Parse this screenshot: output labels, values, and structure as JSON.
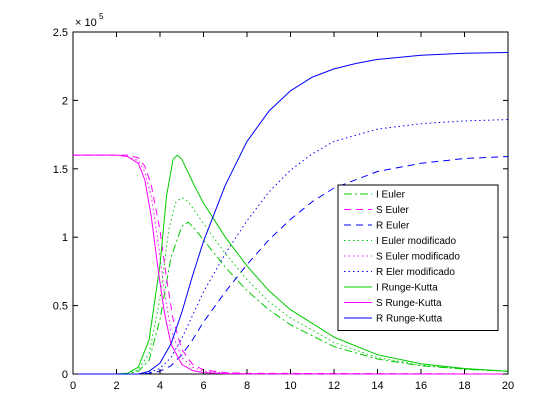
{
  "chart_data": {
    "type": "line",
    "title": "",
    "xlabel": "",
    "ylabel": "",
    "xlim": [
      0,
      20
    ],
    "ylim": [
      0,
      2.5
    ],
    "y_exponent_label": "× 10",
    "y_exponent_power": "5",
    "x_ticks": [
      0,
      2,
      4,
      6,
      8,
      10,
      12,
      14,
      16,
      18,
      20
    ],
    "y_ticks": [
      0,
      0.5,
      1,
      1.5,
      2,
      2.5
    ],
    "y_tick_labels": [
      "0",
      "0.5",
      "1",
      "1.5",
      "2",
      "2.5"
    ],
    "grid": false,
    "legend_position": "right",
    "series": [
      {
        "name": "I Euler",
        "color": "#00cc00",
        "dash": "dashdot",
        "x": [
          0,
          2,
          2.5,
          3,
          3.5,
          4,
          4.5,
          5,
          5.3,
          5.6,
          6,
          7,
          8,
          9,
          10,
          12,
          14,
          16,
          18,
          20
        ],
        "y": [
          0,
          0,
          0.003,
          0.02,
          0.1,
          0.4,
          0.85,
          1.08,
          1.11,
          1.06,
          0.98,
          0.78,
          0.61,
          0.47,
          0.36,
          0.2,
          0.11,
          0.06,
          0.035,
          0.02
        ]
      },
      {
        "name": "S Euler",
        "color": "#ff00ff",
        "dash": "dashed",
        "x": [
          0,
          2,
          2.5,
          3,
          3.3,
          3.6,
          4,
          4.3,
          4.6,
          5,
          5.5,
          6,
          7,
          8,
          20
        ],
        "y": [
          1.6,
          1.6,
          1.6,
          1.58,
          1.52,
          1.38,
          1.05,
          0.7,
          0.4,
          0.18,
          0.07,
          0.03,
          0.01,
          0.005,
          0.0
        ]
      },
      {
        "name": "R Euler",
        "color": "#0000ff",
        "dash": "dashed",
        "x": [
          0,
          3,
          3.5,
          4,
          4.5,
          5,
          5.5,
          6,
          7,
          8,
          9,
          10,
          11,
          12,
          14,
          16,
          18,
          20
        ],
        "y": [
          0,
          0,
          0.005,
          0.02,
          0.06,
          0.14,
          0.25,
          0.38,
          0.6,
          0.8,
          0.98,
          1.13,
          1.26,
          1.36,
          1.48,
          1.54,
          1.575,
          1.59
        ]
      },
      {
        "name": "I Euler modificado",
        "color": "#00cc00",
        "dash": "dotted",
        "x": [
          0,
          2,
          2.5,
          3,
          3.5,
          4,
          4.4,
          4.7,
          5,
          5.3,
          5.6,
          6,
          7,
          8,
          9,
          10,
          12,
          14,
          16,
          18,
          20
        ],
        "y": [
          0,
          0,
          0.004,
          0.03,
          0.15,
          0.55,
          1.05,
          1.25,
          1.29,
          1.26,
          1.19,
          1.1,
          0.88,
          0.69,
          0.53,
          0.41,
          0.23,
          0.12,
          0.065,
          0.035,
          0.02
        ]
      },
      {
        "name": "S Euler modificado",
        "color": "#ff00ff",
        "dash": "dotted",
        "x": [
          0,
          2,
          2.5,
          3,
          3.3,
          3.6,
          3.9,
          4.2,
          4.5,
          5,
          5.5,
          6,
          7,
          8,
          20
        ],
        "y": [
          1.6,
          1.6,
          1.59,
          1.56,
          1.48,
          1.3,
          0.98,
          0.6,
          0.32,
          0.12,
          0.05,
          0.02,
          0.008,
          0.003,
          0.0
        ]
      },
      {
        "name": "R Eler modificado",
        "color": "#0000ff",
        "dash": "dotted",
        "x": [
          0,
          3,
          3.5,
          4,
          4.5,
          5,
          5.5,
          6,
          7,
          8,
          9,
          10,
          11,
          12,
          14,
          16,
          18,
          20
        ],
        "y": [
          0,
          0,
          0.01,
          0.04,
          0.12,
          0.26,
          0.43,
          0.6,
          0.88,
          1.12,
          1.33,
          1.49,
          1.61,
          1.7,
          1.79,
          1.83,
          1.85,
          1.86
        ]
      },
      {
        "name": "I Runge-Kutta",
        "color": "#00cc00",
        "dash": "solid",
        "x": [
          0,
          2,
          2.5,
          3,
          3.5,
          4,
          4.3,
          4.6,
          4.8,
          5,
          5.3,
          5.6,
          6,
          7,
          8,
          9,
          10,
          12,
          14,
          16,
          18,
          20
        ],
        "y": [
          0,
          0,
          0.005,
          0.05,
          0.25,
          0.8,
          1.3,
          1.57,
          1.6,
          1.57,
          1.47,
          1.37,
          1.25,
          1.0,
          0.79,
          0.61,
          0.47,
          0.27,
          0.14,
          0.075,
          0.04,
          0.02
        ]
      },
      {
        "name": "S Runge-Kutta",
        "color": "#ff00ff",
        "dash": "solid",
        "x": [
          0,
          2,
          2.5,
          3,
          3.3,
          3.6,
          3.9,
          4.2,
          4.5,
          5,
          5.5,
          6,
          7,
          8,
          20
        ],
        "y": [
          1.6,
          1.6,
          1.59,
          1.54,
          1.42,
          1.15,
          0.78,
          0.45,
          0.22,
          0.07,
          0.025,
          0.01,
          0.003,
          0.001,
          0.0
        ]
      },
      {
        "name": "R Runge-Kutta",
        "color": "#0000ff",
        "dash": "solid",
        "x": [
          0,
          3,
          3.5,
          4,
          4.5,
          5,
          5.5,
          6,
          7,
          8,
          9,
          10,
          11,
          12,
          13,
          14,
          16,
          18,
          20
        ],
        "y": [
          0,
          0,
          0.02,
          0.08,
          0.22,
          0.45,
          0.72,
          0.97,
          1.38,
          1.7,
          1.92,
          2.07,
          2.17,
          2.23,
          2.27,
          2.3,
          2.33,
          2.345,
          2.35
        ]
      }
    ]
  }
}
